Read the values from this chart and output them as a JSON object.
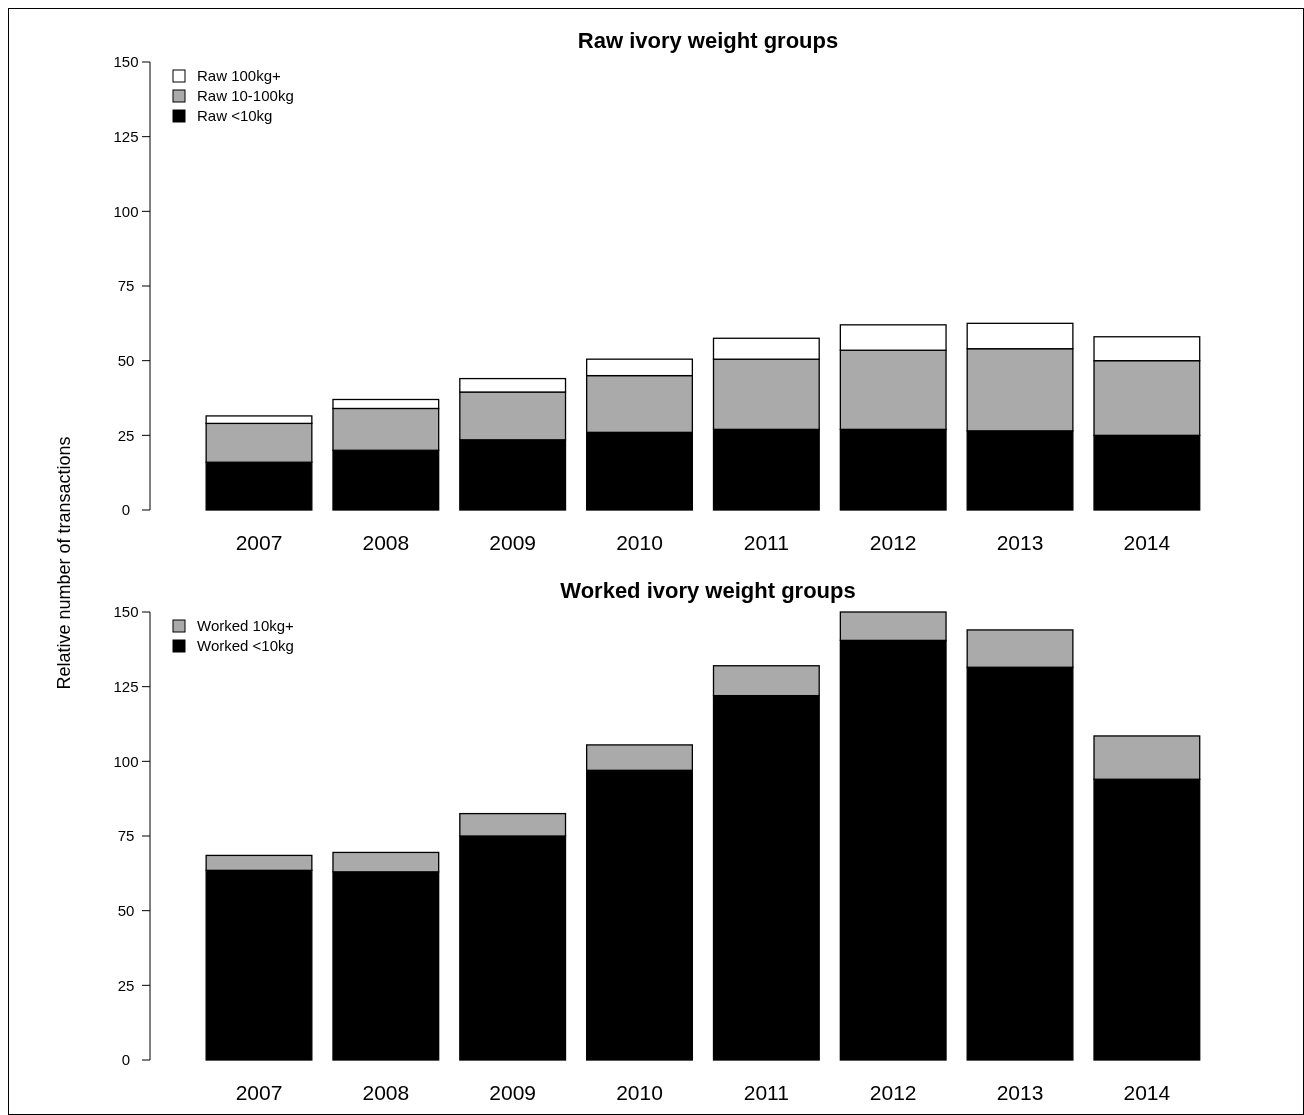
{
  "chart_data": [
    {
      "type": "bar",
      "title": "Raw ivory weight groups",
      "ylabel": "Relative number of transactions",
      "stacked": true,
      "legend": "top left",
      "grid": false,
      "categories": [
        "2007",
        "2008",
        "2009",
        "2010",
        "2011",
        "2012",
        "2013",
        "2014"
      ],
      "ylim": [
        0,
        150
      ],
      "yticks": [
        0,
        25,
        50,
        75,
        100,
        125,
        150
      ],
      "series": [
        {
          "name": "Raw <10kg",
          "color": "#000000",
          "values": [
            16,
            20,
            23.5,
            26,
            27,
            27,
            26.5,
            25
          ]
        },
        {
          "name": "Raw 10-100kg",
          "color": "#aaaaaa",
          "values": [
            13,
            14,
            16,
            19,
            23.5,
            26.5,
            27.5,
            25
          ]
        },
        {
          "name": "Raw 100kg+",
          "color": "#ffffff",
          "values": [
            2.5,
            3,
            4.5,
            5.5,
            7,
            8.5,
            8.5,
            8
          ]
        }
      ]
    },
    {
      "type": "bar",
      "title": "Worked ivory weight groups",
      "stacked": true,
      "legend": "top left",
      "grid": false,
      "categories": [
        "2007",
        "2008",
        "2009",
        "2010",
        "2011",
        "2012",
        "2013",
        "2014"
      ],
      "ylim": [
        0,
        150
      ],
      "yticks": [
        0,
        25,
        50,
        75,
        100,
        125,
        150
      ],
      "series": [
        {
          "name": "Worked <10kg",
          "color": "#000000",
          "values": [
            63.5,
            63,
            75,
            97,
            122,
            140.5,
            131.5,
            94
          ]
        },
        {
          "name": "Worked 10kg+",
          "color": "#aaaaaa",
          "values": [
            5,
            6.5,
            7.5,
            8.5,
            10,
            9.5,
            12.5,
            14.5
          ]
        }
      ]
    }
  ]
}
